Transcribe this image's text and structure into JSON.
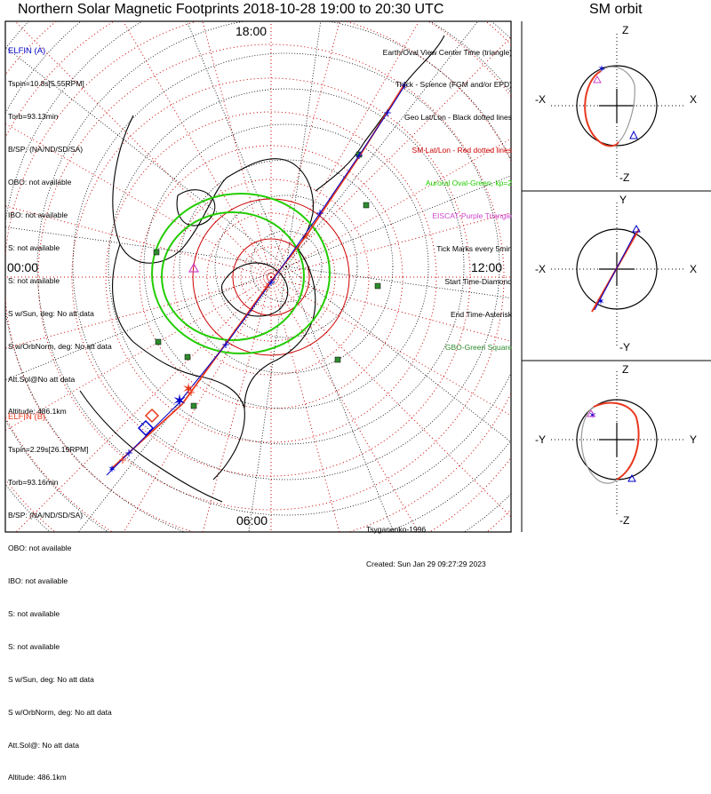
{
  "title": "Northern Solar Magnetic Footprints 2018-10-28 19:00 to 20:30 UTC",
  "orbit_title": "SM orbit",
  "colors": {
    "elfin_a": "#0000cc",
    "elfin_b": "#e8381e",
    "geo_grid": "#000000",
    "sm_grid": "#cc0000",
    "aurora": "#22cc00",
    "eiscat": "#cc44cc",
    "station": "#2e8b2e"
  },
  "elfin_a": {
    "header": "ELFIN (A)",
    "lines": [
      "Tspin=10.8s[5.55RPM]",
      "Torb=93.13min",
      "B/SP: (NA/ND/SD/SA)",
      "OBO: not available",
      "IBO: not available",
      "S: not available",
      "S: not available",
      "S w/Sun, deg: No att data",
      "S w/OrbNorm, deg: No att data",
      "Att.Sol@No att data",
      "Altitude: 486.1km"
    ]
  },
  "elfin_b": {
    "header": "ELFIN (B)",
    "lines": [
      "Tspin=2.29s[26.19RPM]",
      "Torb=93.16min",
      "B/SP: (NA/ND/SD/SA)",
      "OBO: not available",
      "IBO: not available",
      "S: not available",
      "S: not available",
      "S w/Sun, deg: No att data",
      "S w/OrbNorm, deg: No att data",
      "Att.Sol@: No att data",
      "Altitude: 486.1km"
    ]
  },
  "legend": [
    {
      "text": "Earth/Oval View Center Time (triangle)",
      "color": "#000000"
    },
    {
      "text": "Thick - Science (FGM and/or EPD)",
      "color": "#000000"
    },
    {
      "text": "Geo Lat/Lon - Black dotted lines",
      "color": "#000000"
    },
    {
      "text": "SM Lat/Lon - Red dotted lines",
      "color": "#cc0000"
    },
    {
      "text": "Auroral Oval-Green, kp=2",
      "color": "#22cc00"
    },
    {
      "text": "EISCAT-Purple Triangle",
      "color": "#cc44cc"
    },
    {
      "text": "Tick Marks every 5min",
      "color": "#000000"
    },
    {
      "text": "Start Time-Diamond",
      "color": "#000000"
    },
    {
      "text": "End Time-Asterisk",
      "color": "#000000"
    },
    {
      "text": "GBO-Green Square",
      "color": "#2e8b2e"
    }
  ],
  "credits": {
    "author": "Tsyganenko-1996",
    "created": "Created: Sun Jan 29 09:27:29 2023"
  },
  "chart_data": [
    {
      "type": "scatter",
      "title": "Northern Solar Magnetic Footprints 2018-10-28 19:00 to 20:30 UTC",
      "projection": "polar, north pole centred, magnetic local time",
      "mlt_labels": {
        "top": "18:00",
        "left": "00:00",
        "right": "12:00",
        "bottom": "06:00"
      },
      "series": [
        {
          "name": "ELFIN (A)",
          "style": "thin line, blue tick marks",
          "tick_interval_min": 5
        },
        {
          "name": "ELFIN (B)",
          "style": "thin line, red tick marks",
          "tick_interval_min": 5
        }
      ],
      "auroral_oval_kp": 2,
      "grid": true
    },
    {
      "type": "line",
      "title": "SM orbit",
      "panels": [
        {
          "horizontal": [
            "-X",
            "X"
          ],
          "vertical": [
            "Z",
            "-Z"
          ]
        },
        {
          "horizontal": [
            "-X",
            "X"
          ],
          "vertical": [
            "Y",
            "-Y"
          ]
        },
        {
          "horizontal": [
            "-Y",
            "Y"
          ],
          "vertical": [
            "Z",
            "-Z"
          ]
        }
      ]
    }
  ]
}
